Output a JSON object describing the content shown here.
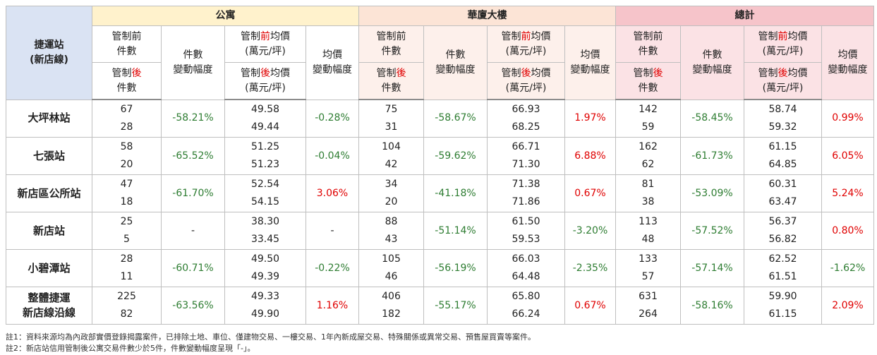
{
  "header": {
    "station": "捷運站\n(新店線)",
    "groups": [
      "公寓",
      "華廈大樓",
      "總計"
    ],
    "subheaders": {
      "before_count": "管制前\n件數",
      "after_count": [
        "管制",
        "後",
        "\n件數"
      ],
      "count_change": "件數\n變動幅度",
      "before_price": [
        "管制",
        "前",
        "均價\n(萬元/坪)"
      ],
      "after_price": [
        "管制",
        "後",
        "均價\n(萬元/坪)"
      ],
      "price_change": "均價\n變動幅度"
    }
  },
  "rows": [
    {
      "station": "大坪林站",
      "groups": [
        {
          "before_count": "67",
          "after_count": "28",
          "count_change": "-58.21%",
          "before_price": "49.58",
          "after_price": "49.44",
          "price_change": "-0.28%"
        },
        {
          "before_count": "75",
          "after_count": "31",
          "count_change": "-58.67%",
          "before_price": "66.93",
          "after_price": "68.25",
          "price_change": "1.97%"
        },
        {
          "before_count": "142",
          "after_count": "59",
          "count_change": "-58.45%",
          "before_price": "58.74",
          "after_price": "59.32",
          "price_change": "0.99%"
        }
      ]
    },
    {
      "station": "七張站",
      "groups": [
        {
          "before_count": "58",
          "after_count": "20",
          "count_change": "-65.52%",
          "before_price": "51.25",
          "after_price": "51.23",
          "price_change": "-0.04%"
        },
        {
          "before_count": "104",
          "after_count": "42",
          "count_change": "-59.62%",
          "before_price": "66.71",
          "after_price": "71.30",
          "price_change": "6.88%"
        },
        {
          "before_count": "162",
          "after_count": "62",
          "count_change": "-61.73%",
          "before_price": "61.15",
          "after_price": "64.85",
          "price_change": "6.05%"
        }
      ]
    },
    {
      "station": "新店區公所站",
      "groups": [
        {
          "before_count": "47",
          "after_count": "18",
          "count_change": "-61.70%",
          "before_price": "52.54",
          "after_price": "54.15",
          "price_change": "3.06%"
        },
        {
          "before_count": "34",
          "after_count": "20",
          "count_change": "-41.18%",
          "before_price": "71.38",
          "after_price": "71.86",
          "price_change": "0.67%"
        },
        {
          "before_count": "81",
          "after_count": "38",
          "count_change": "-53.09%",
          "before_price": "60.31",
          "after_price": "63.47",
          "price_change": "5.24%"
        }
      ]
    },
    {
      "station": "新店站",
      "groups": [
        {
          "before_count": "25",
          "after_count": "5",
          "count_change": "-",
          "before_price": "38.30",
          "after_price": "33.45",
          "price_change": "-"
        },
        {
          "before_count": "88",
          "after_count": "43",
          "count_change": "-51.14%",
          "before_price": "61.50",
          "after_price": "59.53",
          "price_change": "-3.20%"
        },
        {
          "before_count": "113",
          "after_count": "48",
          "count_change": "-57.52%",
          "before_price": "56.37",
          "after_price": "56.82",
          "price_change": "0.80%"
        }
      ]
    },
    {
      "station": "小碧潭站",
      "groups": [
        {
          "before_count": "28",
          "after_count": "11",
          "count_change": "-60.71%",
          "before_price": "49.50",
          "after_price": "49.39",
          "price_change": "-0.22%"
        },
        {
          "before_count": "105",
          "after_count": "46",
          "count_change": "-56.19%",
          "before_price": "66.03",
          "after_price": "64.48",
          "price_change": "-2.35%"
        },
        {
          "before_count": "133",
          "after_count": "57",
          "count_change": "-57.14%",
          "before_price": "62.52",
          "after_price": "61.51",
          "price_change": "-1.62%"
        }
      ]
    },
    {
      "station": "整體捷運\n新店線沿線",
      "groups": [
        {
          "before_count": "225",
          "after_count": "82",
          "count_change": "-63.56%",
          "before_price": "49.33",
          "after_price": "49.90",
          "price_change": "1.16%"
        },
        {
          "before_count": "406",
          "after_count": "182",
          "count_change": "-55.17%",
          "before_price": "65.80",
          "after_price": "66.24",
          "price_change": "0.67%"
        },
        {
          "before_count": "631",
          "after_count": "264",
          "count_change": "-58.16%",
          "before_price": "59.90",
          "after_price": "61.15",
          "price_change": "2.09%"
        }
      ]
    }
  ],
  "notes": [
    "註1：資料來源均為內政部實價登錄揭露案件，已排除土地、車位、僅建物交易、一樓交易、1年內新成屋交易、特殊關係或異常交易、預售屋買賣等案件。",
    "註2：新店站信用管制後公寓交易件數少於5件，件數變動幅度呈現「-」。"
  ]
}
